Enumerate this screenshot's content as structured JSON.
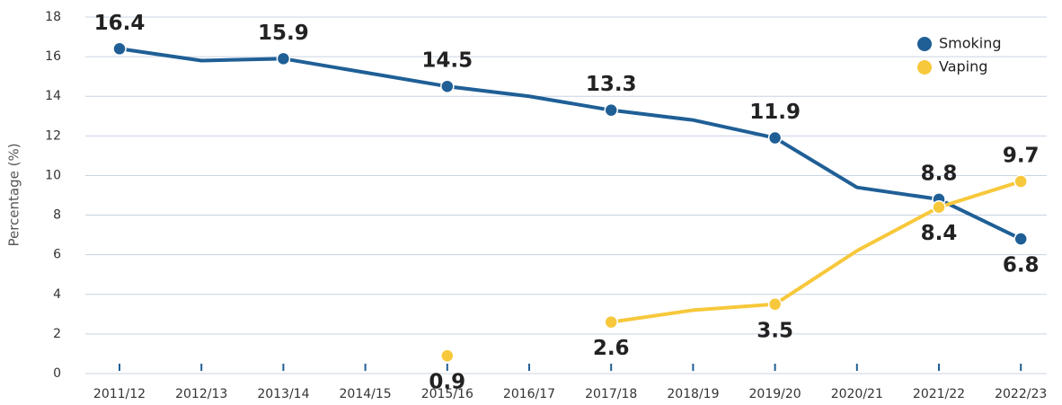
{
  "chart_data": {
    "type": "line",
    "y_label": "Percentage (%)",
    "categories": [
      "2011/12",
      "2012/13",
      "2013/14",
      "2014/15",
      "2015/16",
      "2016/17",
      "2017/18",
      "2018/19",
      "2019/20",
      "2020/21",
      "2021/22",
      "2022/23"
    ],
    "series": [
      {
        "name": "Smoking",
        "color": "#1f5f96",
        "values": [
          16.4,
          15.8,
          15.9,
          15.2,
          14.5,
          14.0,
          13.3,
          12.8,
          11.9,
          9.4,
          8.8,
          6.8
        ],
        "labeled": [
          0,
          2,
          4,
          6,
          8,
          10,
          11
        ]
      },
      {
        "name": "Vaping",
        "color": "#f7c83b",
        "values": [
          null,
          null,
          null,
          null,
          0.9,
          null,
          2.6,
          3.2,
          3.5,
          6.2,
          8.4,
          9.7
        ],
        "labeled": [
          4,
          6,
          8,
          10,
          11
        ]
      }
    ],
    "ylim": [
      0,
      18
    ],
    "yticks": [
      0,
      2,
      4,
      6,
      8,
      10,
      12,
      14,
      16,
      18
    ],
    "grid": true,
    "legend": "top-right"
  }
}
